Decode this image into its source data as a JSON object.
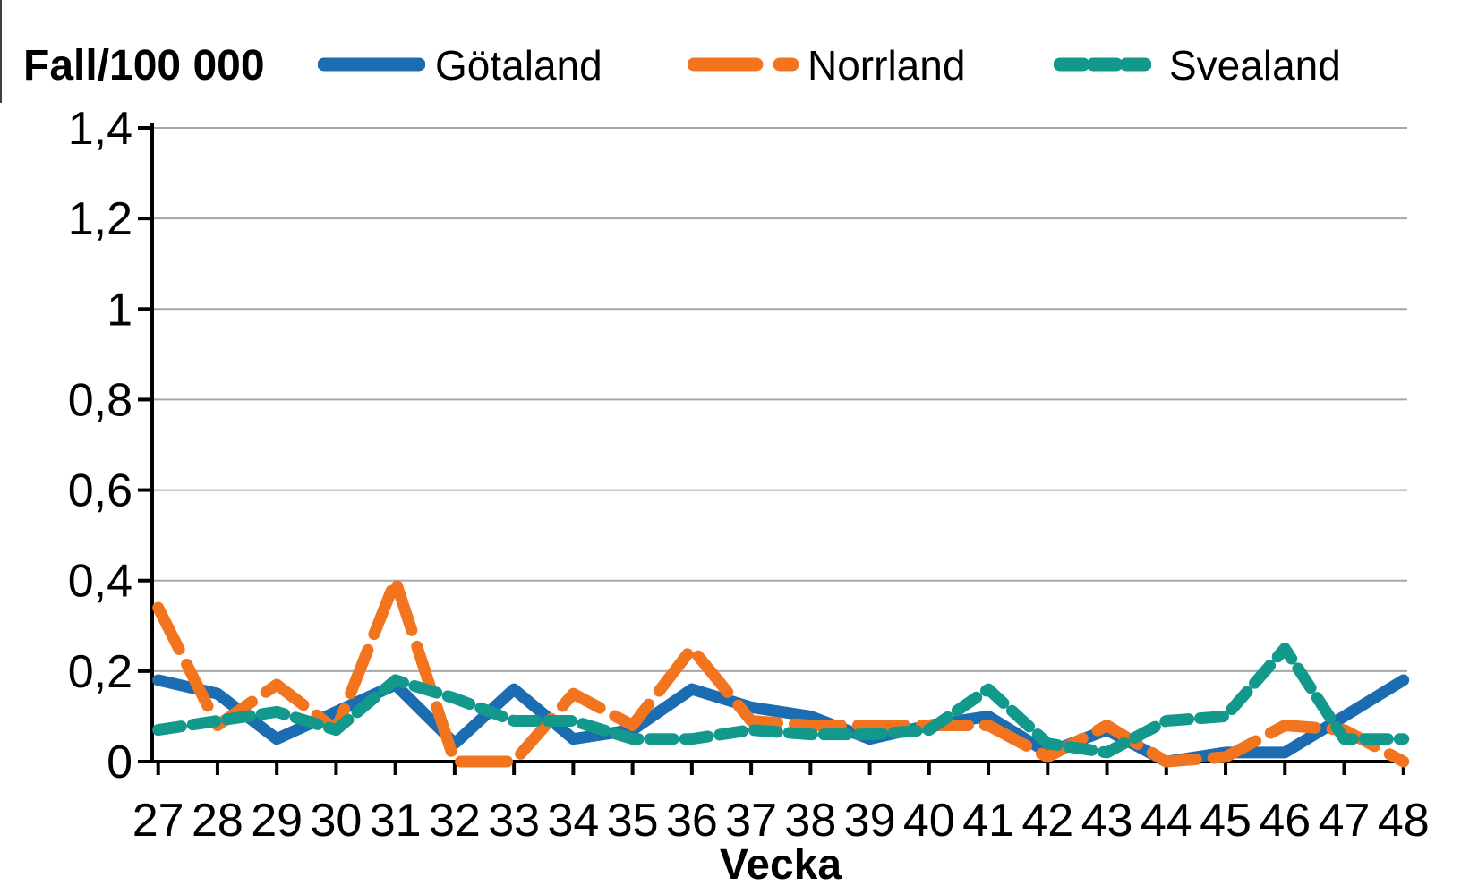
{
  "header": {
    "y_axis_title": "Fall/100 000"
  },
  "chart_data": {
    "type": "line",
    "title": "",
    "x_label": "Vecka",
    "y_label": "Fall/100 000",
    "x": [
      27,
      28,
      29,
      30,
      31,
      32,
      33,
      34,
      35,
      36,
      37,
      38,
      39,
      40,
      41,
      42,
      43,
      44,
      45,
      46,
      47,
      48
    ],
    "series": [
      {
        "name": "Götaland",
        "color": "#1B6CB0",
        "style": "solid",
        "values": [
          0.18,
          0.15,
          0.05,
          0.11,
          0.17,
          0.04,
          0.16,
          0.05,
          0.07,
          0.16,
          0.12,
          0.1,
          0.05,
          0.08,
          0.1,
          0.02,
          0.07,
          0.0,
          0.02,
          0.02,
          0.1,
          0.18
        ]
      },
      {
        "name": "Norrland",
        "color": "#F3741F",
        "style": "long-dash",
        "values": [
          0.34,
          0.08,
          0.17,
          0.07,
          0.4,
          0.0,
          0.0,
          0.15,
          0.08,
          0.25,
          0.09,
          0.08,
          0.08,
          0.08,
          0.08,
          0.01,
          0.08,
          0.0,
          0.01,
          0.08,
          0.07,
          0.0
        ]
      },
      {
        "name": "Svealand",
        "color": "#12998C",
        "style": "short-dash",
        "values": [
          0.07,
          0.09,
          0.11,
          0.07,
          0.18,
          0.14,
          0.09,
          0.09,
          0.05,
          0.05,
          0.07,
          0.06,
          0.06,
          0.07,
          0.16,
          0.04,
          0.02,
          0.09,
          0.1,
          0.25,
          0.05,
          0.05
        ]
      }
    ],
    "ylim": [
      0,
      1.4
    ],
    "ytick_values": [
      0,
      0.2,
      0.4,
      0.6,
      0.8,
      1,
      1.2,
      1.4
    ],
    "ytick_labels": [
      "0",
      "0,2",
      "0,4",
      "0,6",
      "0,8",
      "1",
      "1,2",
      "1,4"
    ],
    "grid": "horizontal",
    "legend_position": "top",
    "axis_color": "#000000",
    "gridline_color": "#A6A6A6"
  }
}
